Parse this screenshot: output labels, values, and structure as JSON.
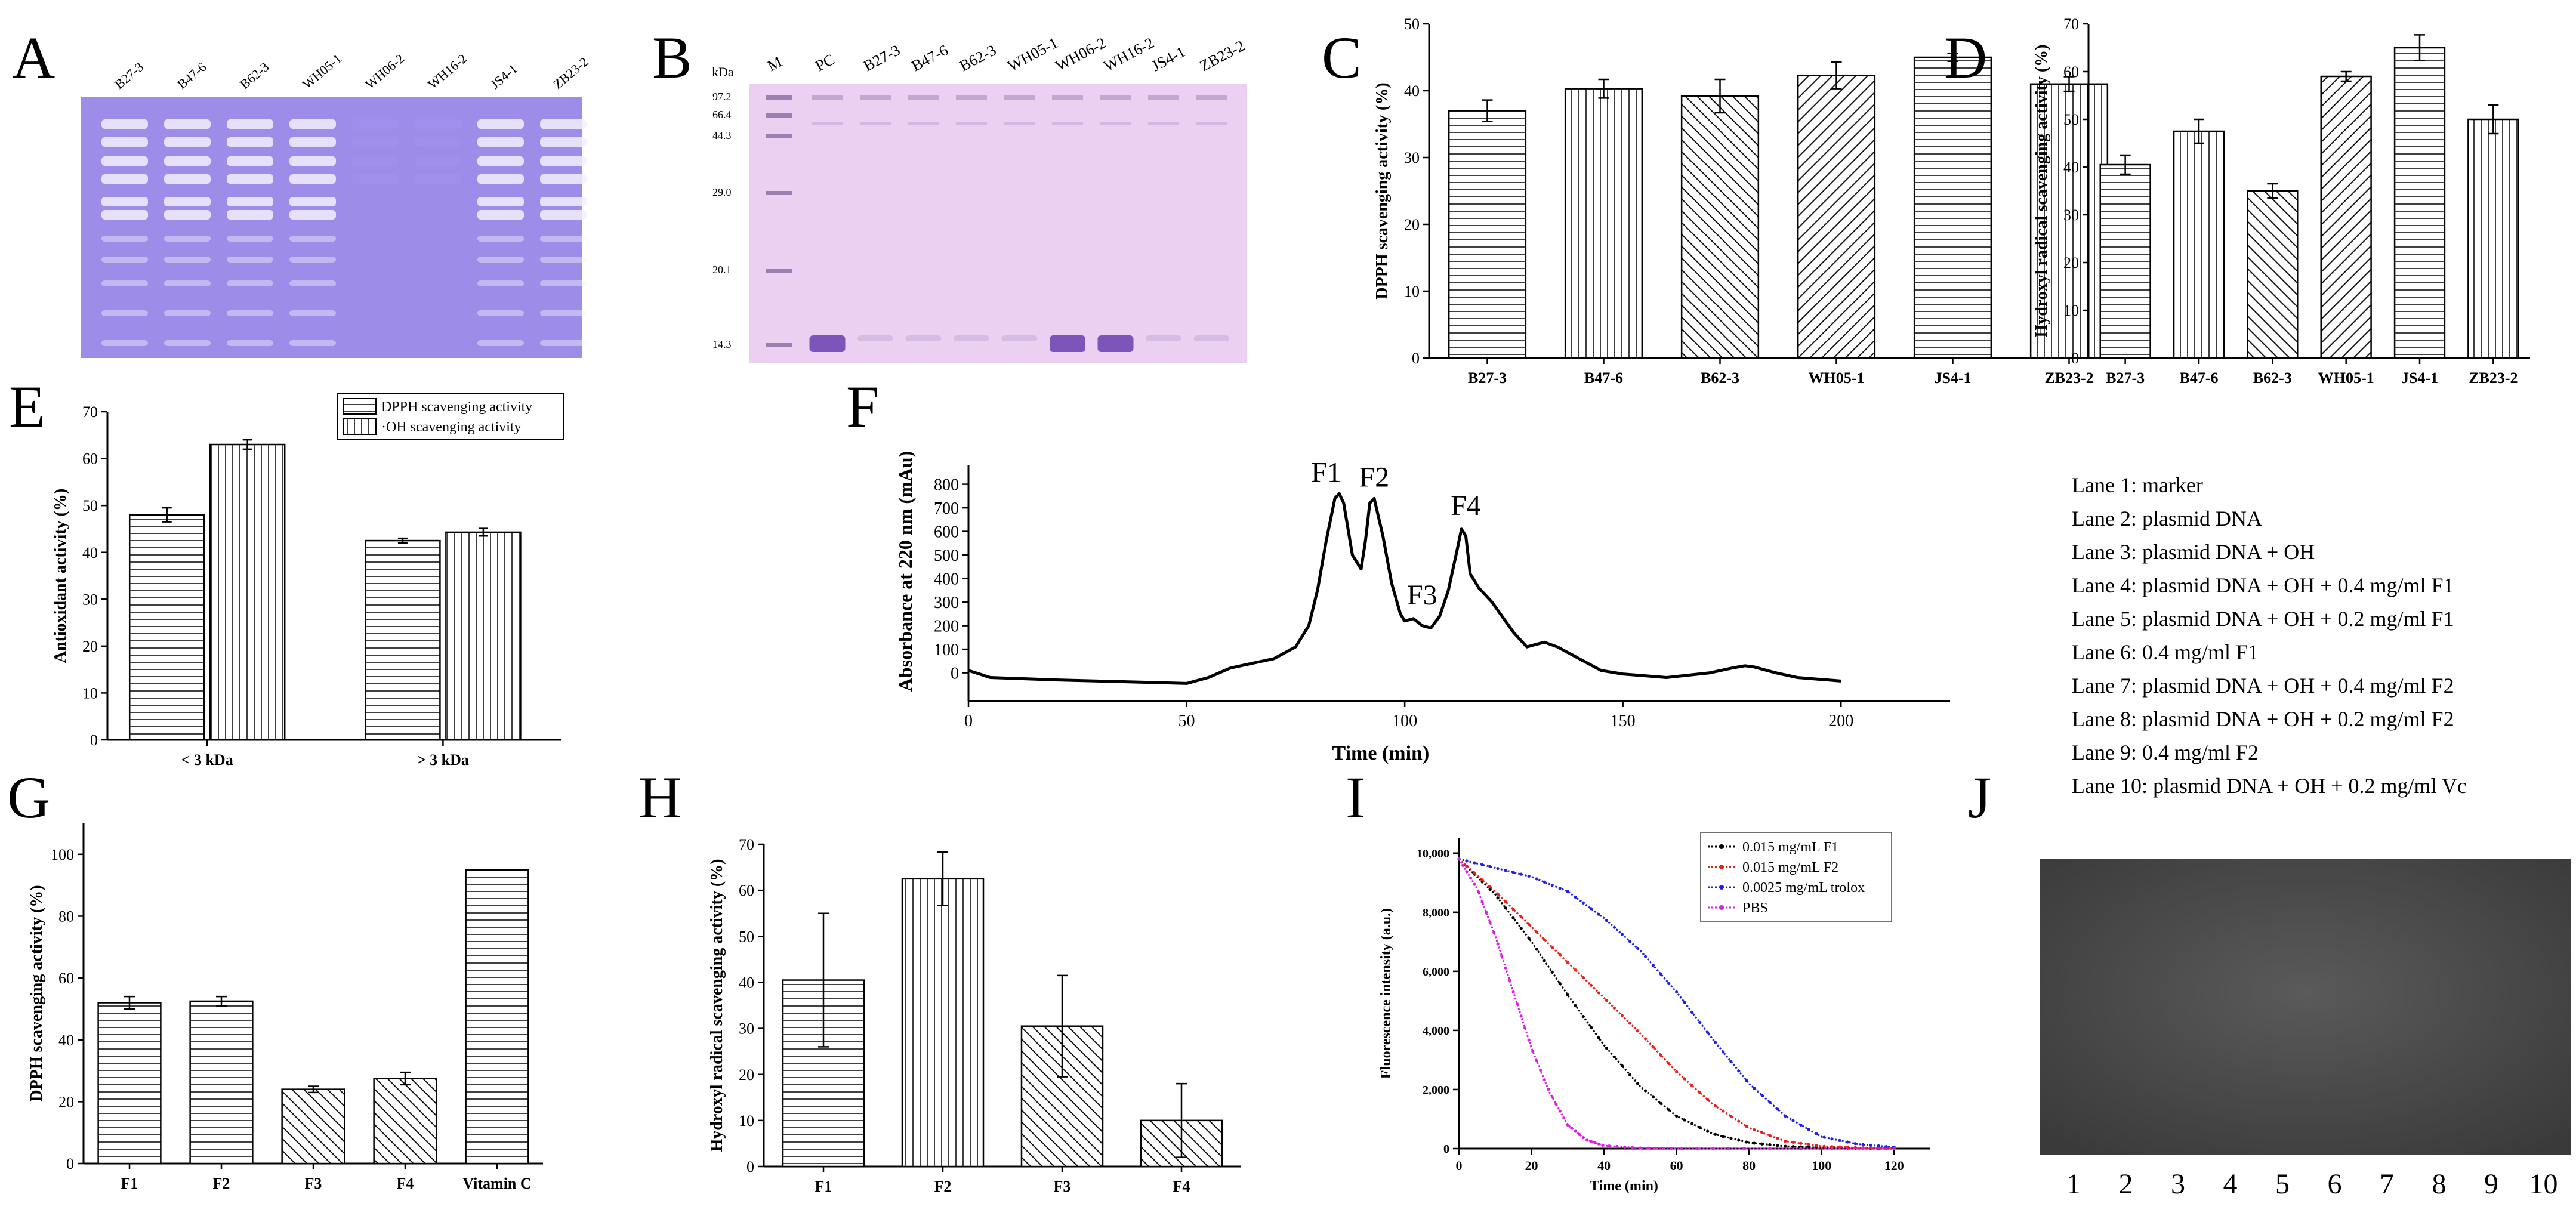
{
  "panels": {
    "A": {
      "letter": "A",
      "lanes": [
        "B27-3",
        "B47-6",
        "B62-3",
        "WH05-1",
        "WH06-2",
        "WH16-2",
        "JS4-1",
        "ZB23-2"
      ],
      "bg": "#9e8ee6"
    },
    "B": {
      "letter": "B",
      "kda": "kDa",
      "lanes": [
        "M",
        "PC",
        "B27-3",
        "B47-6",
        "B62-3",
        "WH05-1",
        "WH06-2",
        "WH16-2",
        "JS4-1",
        "ZB23-2"
      ],
      "markers": [
        "97.2",
        "66.4",
        "44.3",
        "29.0",
        "20.1",
        "14.3"
      ],
      "bg": "#e9cdf0"
    },
    "J": {
      "letter": "J",
      "lane_numbers": [
        "1",
        "2",
        "3",
        "4",
        "5",
        "6",
        "7",
        "8",
        "9",
        "10"
      ],
      "legend": [
        "Lane 1: marker",
        "Lane 2: plasmid DNA",
        "Lane 3:  plasmid DNA + OH",
        "Lane 4: plasmid DNA + OH + 0.4 mg/ml F1",
        "Lane 5: plasmid DNA + OH + 0.2 mg/ml F1",
        "Lane 6: 0.4 mg/ml F1",
        "Lane 7: plasmid DNA + OH + 0.4 mg/ml F2",
        "Lane 8: plasmid DNA + OH + 0.2 mg/ml F2",
        "Lane 9: 0.4 mg/ml F2",
        "Lane 10: plasmid DNA + OH + 0.2 mg/ml Vc"
      ]
    }
  },
  "chart_data": [
    {
      "id": "C",
      "letter": "C",
      "type": "bar",
      "categories": [
        "B27-3",
        "B47-6",
        "B62-3",
        "WH05-1",
        "JS4-1",
        "ZB23-2"
      ],
      "values": [
        37,
        40.3,
        39.2,
        42.3,
        45,
        41
      ],
      "errors": [
        1.6,
        1.4,
        2.5,
        2,
        0.6,
        1.1
      ],
      "ylabel": "DPPH scavenging activity (%)",
      "ylim": [
        0,
        50
      ],
      "yticks": [
        0,
        10,
        20,
        30,
        40,
        50
      ]
    },
    {
      "id": "D",
      "letter": "D",
      "type": "bar",
      "categories": [
        "B27-3",
        "B47-6",
        "B62-3",
        "WH05-1",
        "JS4-1",
        "ZB23-2"
      ],
      "values": [
        40.5,
        47.5,
        35,
        59,
        65,
        50
      ],
      "errors": [
        2,
        2.5,
        1.5,
        1,
        2.7,
        3
      ],
      "ylabel": "Hydroxyl radical scavenging activity (%)",
      "ylim": [
        0,
        70
      ],
      "yticks": [
        0,
        10,
        20,
        30,
        40,
        50,
        60,
        70
      ]
    },
    {
      "id": "E",
      "letter": "E",
      "type": "bar",
      "categories": [
        "< 3 kDa",
        "> 3 kDa"
      ],
      "series": [
        {
          "name": "DPPH scavenging activity",
          "values": [
            48,
            42.5
          ],
          "errors": [
            1.5,
            0.5
          ]
        },
        {
          "name": "·OH scavenging activity",
          "values": [
            63,
            44.3
          ],
          "errors": [
            1,
            0.8
          ]
        }
      ],
      "ylabel": "Antioxidant activity (%)",
      "ylim": [
        0,
        70
      ],
      "yticks": [
        0,
        10,
        20,
        30,
        40,
        50,
        60,
        70
      ],
      "legend_position": "top-right"
    },
    {
      "id": "F",
      "letter": "F",
      "type": "line",
      "x": [
        0,
        5,
        20,
        40,
        50,
        55,
        60,
        65,
        70,
        75,
        78,
        80,
        82,
        84,
        85,
        86,
        88,
        90,
        91,
        92,
        93,
        95,
        97,
        99,
        100,
        102,
        104,
        106,
        108,
        110,
        112,
        113,
        114,
        115,
        117,
        120,
        125,
        128,
        130,
        132,
        135,
        140,
        145,
        150,
        160,
        170,
        175,
        178,
        180,
        185,
        190,
        200
      ],
      "y": [
        10,
        -20,
        -30,
        -40,
        -45,
        -20,
        20,
        40,
        60,
        110,
        200,
        350,
        560,
        740,
        760,
        720,
        500,
        440,
        560,
        720,
        740,
        580,
        380,
        250,
        220,
        230,
        200,
        190,
        240,
        350,
        520,
        610,
        580,
        420,
        360,
        300,
        170,
        110,
        120,
        130,
        110,
        60,
        10,
        -5,
        -20,
        0,
        20,
        30,
        25,
        0,
        -20,
        -35
      ],
      "xlabel": "Time (min)",
      "ylabel": "Absorbance at 220 nm (mAu)",
      "xlim": [
        0,
        225
      ],
      "ylim": [
        -120,
        880
      ],
      "xticks": [
        0,
        50,
        100,
        150,
        200
      ],
      "yticks": [
        0,
        100,
        200,
        300,
        400,
        500,
        600,
        700,
        800
      ],
      "annotations": [
        {
          "text": "F1",
          "x": 82,
          "y": 810
        },
        {
          "text": "F2",
          "x": 93,
          "y": 790
        },
        {
          "text": "F3",
          "x": 104,
          "y": 290
        },
        {
          "text": "F4",
          "x": 114,
          "y": 670
        }
      ]
    },
    {
      "id": "G",
      "letter": "G",
      "type": "bar",
      "categories": [
        "F1",
        "F2",
        "F3",
        "F4",
        "Vitamin C"
      ],
      "values": [
        52,
        52.5,
        24,
        27.5,
        95
      ],
      "errors": [
        2,
        1.5,
        1,
        2,
        0
      ],
      "ylabel": "DPPH scavenging activity (%)",
      "ylim": [
        0,
        110
      ],
      "yticks": [
        0,
        20,
        40,
        60,
        80,
        100
      ]
    },
    {
      "id": "H",
      "letter": "H",
      "type": "bar",
      "categories": [
        "F1",
        "F2",
        "F3",
        "F4"
      ],
      "values": [
        40.5,
        62.5,
        30.5,
        10
      ],
      "errors": [
        14.5,
        5.8,
        11,
        8
      ],
      "ylabel": "Hydroxyl radical scavenging activity (%)",
      "ylim": [
        0,
        70
      ],
      "yticks": [
        0,
        10,
        20,
        30,
        40,
        50,
        60,
        70
      ]
    },
    {
      "id": "I",
      "letter": "I",
      "type": "line",
      "xlabel": "Time (min)",
      "ylabel": "Fluorescence intensity (a.u.)",
      "xlim": [
        0,
        130
      ],
      "ylim": [
        0,
        10500
      ],
      "xticks": [
        0,
        20,
        40,
        60,
        80,
        100,
        120
      ],
      "yticks": [
        0,
        2000,
        4000,
        6000,
        8000,
        10000
      ],
      "ytick_labels": [
        "0",
        "2,000",
        "4,000",
        "6,000",
        "8,000",
        "10,000"
      ],
      "series": [
        {
          "name": "0.015 mg/mL F1",
          "color": "#000000",
          "x": [
            0,
            10,
            20,
            30,
            40,
            50,
            60,
            70,
            80,
            90,
            100,
            110,
            120
          ],
          "y": [
            9800,
            8600,
            7000,
            5200,
            3500,
            2100,
            1100,
            500,
            200,
            80,
            30,
            10,
            5
          ]
        },
        {
          "name": "0.015 mg/mL F2",
          "color": "#e8211c",
          "x": [
            0,
            10,
            20,
            30,
            40,
            50,
            60,
            70,
            80,
            90,
            100,
            110,
            120
          ],
          "y": [
            9800,
            8700,
            7500,
            6300,
            5100,
            3900,
            2600,
            1500,
            700,
            250,
            80,
            30,
            10
          ]
        },
        {
          "name": "0.0025 mg/mL trolox",
          "color": "#1d22e6",
          "x": [
            0,
            10,
            20,
            30,
            40,
            50,
            60,
            70,
            80,
            90,
            100,
            110,
            120
          ],
          "y": [
            9800,
            9500,
            9200,
            8700,
            7800,
            6700,
            5300,
            3700,
            2200,
            1100,
            400,
            150,
            50
          ]
        },
        {
          "name": "PBS",
          "color": "#e01ce8",
          "x": [
            0,
            5,
            10,
            15,
            20,
            25,
            30,
            35,
            40,
            50,
            60,
            80,
            120
          ],
          "y": [
            9800,
            8800,
            7200,
            5300,
            3400,
            1900,
            800,
            300,
            100,
            20,
            5,
            0,
            0
          ]
        }
      ]
    }
  ]
}
